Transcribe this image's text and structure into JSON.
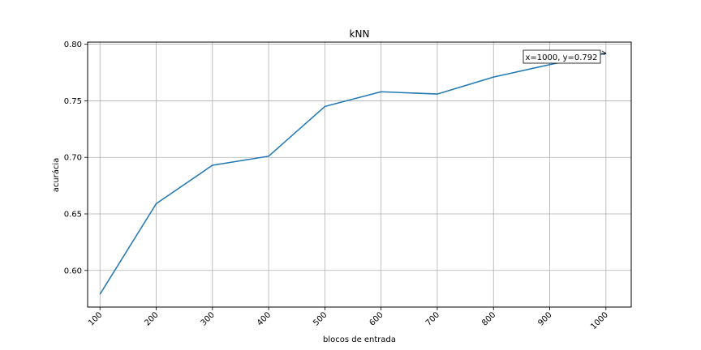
{
  "chart_data": {
    "type": "line",
    "title": "kNN",
    "xlabel": "blocos de entrada",
    "ylabel": "acurácia",
    "x": [
      100,
      200,
      300,
      400,
      500,
      600,
      700,
      800,
      900,
      1000
    ],
    "series": [
      {
        "values": [
          0.579,
          0.659,
          0.693,
          0.701,
          0.745,
          0.758,
          0.756,
          0.771,
          0.782,
          0.792
        ],
        "color": "#1f77b4"
      }
    ],
    "xticks": [
      "100",
      "200",
      "300",
      "400",
      "500",
      "600",
      "700",
      "800",
      "900",
      "1000"
    ],
    "yticks": [
      "0.60",
      "0.65",
      "0.70",
      "0.75",
      "0.80"
    ],
    "ytick_values": [
      0.6,
      0.65,
      0.7,
      0.75,
      0.8
    ],
    "xlim": [
      78,
      1045
    ],
    "ylim": [
      0.5676,
      0.8019
    ],
    "grid": true,
    "annotation": {
      "text": "x=1000, y=0.792",
      "x": 1000,
      "y": 0.792
    }
  }
}
